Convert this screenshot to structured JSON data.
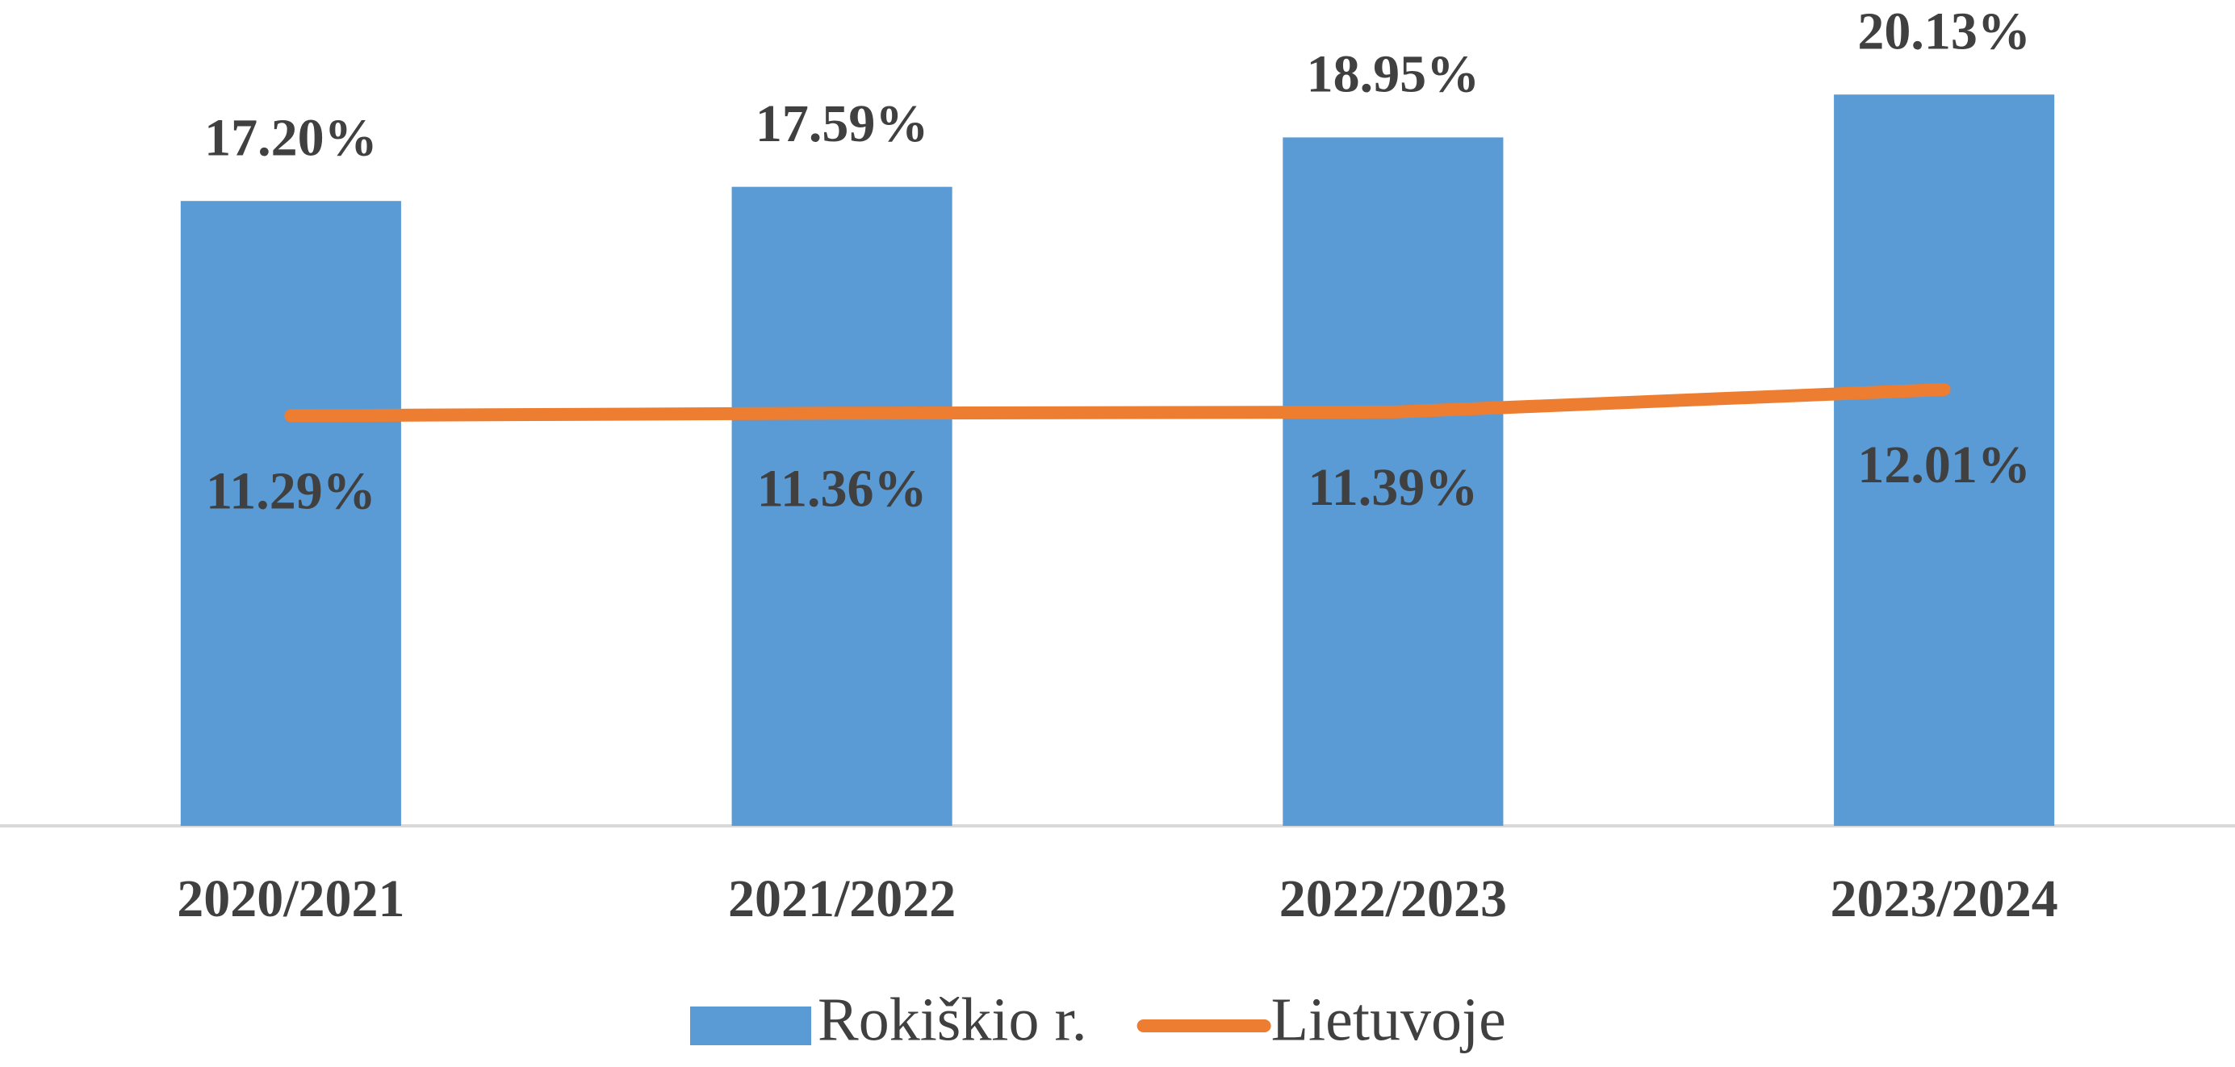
{
  "chart_data": {
    "type": "bar",
    "categories": [
      "2020/2021",
      "2021/2022",
      "2022/2023",
      "2023/2024"
    ],
    "series": [
      {
        "name": "Rokiškio r.",
        "type": "bar",
        "color": "#5b9bd5",
        "values": [
          17.2,
          17.59,
          18.95,
          20.13
        ],
        "value_labels": [
          "17.20%",
          "17.59%",
          "18.95%",
          "20.13%"
        ]
      },
      {
        "name": "Lietuvoje",
        "type": "line",
        "color": "#ed7d31",
        "values": [
          11.29,
          11.36,
          11.39,
          12.01
        ],
        "value_labels": [
          "11.29%",
          "11.36%",
          "11.39%",
          "12.01%"
        ]
      }
    ],
    "ylim": [
      0,
      22
    ],
    "legend": "bottom"
  }
}
